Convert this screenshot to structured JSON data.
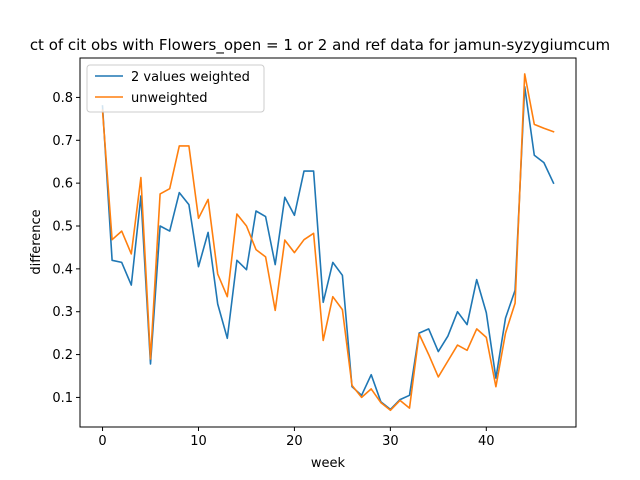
{
  "chart_data": {
    "type": "line",
    "title": "ct of cit obs with Flowers_open = 1 or 2 and ref data for jamun-syzygiumcum",
    "xlabel": "week",
    "ylabel": "difference",
    "xlim": [
      -2.35,
      49.35
    ],
    "ylim": [
      0.031,
      0.892
    ],
    "xticks": [
      0,
      10,
      20,
      30,
      40
    ],
    "yticks": [
      0.1,
      0.2,
      0.3,
      0.4,
      0.5,
      0.6,
      0.7,
      0.8
    ],
    "ytick_labels": [
      "0.1",
      "0.2",
      "0.3",
      "0.4",
      "0.5",
      "0.6",
      "0.7",
      "0.8"
    ],
    "legend_position": "upper-left",
    "series": [
      {
        "name": "2 values weighted",
        "color": "#1f77b4",
        "x": [
          0,
          1,
          2,
          3,
          4,
          5,
          6,
          7,
          8,
          9,
          10,
          11,
          12,
          13,
          14,
          15,
          16,
          17,
          18,
          19,
          20,
          21,
          22,
          23,
          24,
          25,
          26,
          27,
          28,
          29,
          30,
          31,
          32,
          33,
          34,
          35,
          36,
          37,
          38,
          39,
          40,
          41,
          42,
          43,
          44,
          45,
          46,
          47
        ],
        "y": [
          0.78,
          0.42,
          0.415,
          0.362,
          0.57,
          0.178,
          0.5,
          0.488,
          0.578,
          0.55,
          0.405,
          0.485,
          0.318,
          0.238,
          0.42,
          0.398,
          0.535,
          0.522,
          0.41,
          0.567,
          0.525,
          0.628,
          0.628,
          0.322,
          0.415,
          0.385,
          0.125,
          0.105,
          0.153,
          0.09,
          0.072,
          0.095,
          0.105,
          0.25,
          0.26,
          0.207,
          0.243,
          0.3,
          0.27,
          0.375,
          0.298,
          0.145,
          0.285,
          0.35,
          0.825,
          0.665,
          0.648,
          0.6
        ]
      },
      {
        "name": "unweighted",
        "color": "#ff7f0e",
        "x": [
          0,
          1,
          2,
          3,
          4,
          5,
          6,
          7,
          8,
          9,
          10,
          11,
          12,
          13,
          14,
          15,
          16,
          17,
          18,
          19,
          20,
          21,
          22,
          23,
          24,
          25,
          26,
          27,
          28,
          29,
          30,
          31,
          32,
          33,
          34,
          35,
          36,
          37,
          38,
          39,
          40,
          41,
          42,
          43,
          44,
          45,
          46,
          47
        ],
        "y": [
          0.77,
          0.468,
          0.488,
          0.435,
          0.613,
          0.19,
          0.575,
          0.587,
          0.687,
          0.687,
          0.518,
          0.562,
          0.388,
          0.335,
          0.528,
          0.5,
          0.445,
          0.428,
          0.303,
          0.467,
          0.438,
          0.468,
          0.483,
          0.233,
          0.335,
          0.305,
          0.128,
          0.1,
          0.12,
          0.088,
          0.07,
          0.093,
          0.075,
          0.248,
          0.2,
          0.148,
          0.185,
          0.222,
          0.21,
          0.26,
          0.24,
          0.125,
          0.25,
          0.32,
          0.855,
          0.737,
          0.728,
          0.72
        ]
      }
    ]
  }
}
